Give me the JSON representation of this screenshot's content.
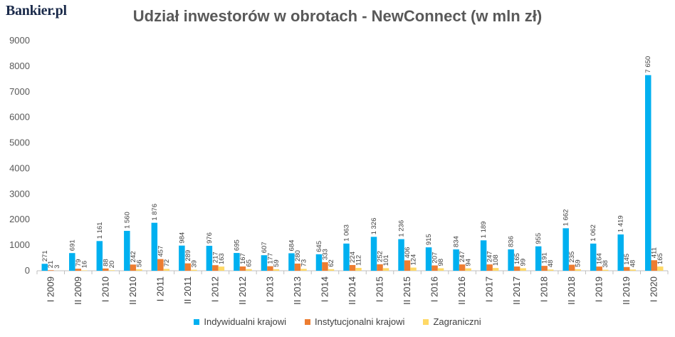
{
  "header": {
    "logo": "Bankier.pl"
  },
  "chart_data": {
    "type": "bar",
    "title": "Udział inwestorów w obrotach - NewConnect (w mln zł)",
    "xlabel": "",
    "ylabel": "",
    "ylim": [
      0,
      9000
    ],
    "yticks": [
      0,
      1000,
      2000,
      3000,
      4000,
      5000,
      6000,
      7000,
      8000,
      9000
    ],
    "grid": false,
    "legend_position": "bottom",
    "categories": [
      "I 2009",
      "II 2009",
      "I 2010",
      "II 2010",
      "I 2011",
      "II 2011",
      "I 2012",
      "II 2012",
      "I 2013",
      "II 2013",
      "I 2014",
      "II 2014",
      "I 2015",
      "II 2015",
      "I 2016",
      "II 2016",
      "I 2017",
      "II 2017",
      "I 2018",
      "II 2018",
      "I 2019",
      "II 2019",
      "I 2020"
    ],
    "series": [
      {
        "name": "Indywidualni krajowi",
        "color": "#00B0F0",
        "values": [
          271,
          691,
          1161,
          1560,
          1876,
          984,
          976,
          695,
          607,
          684,
          645,
          1063,
          1326,
          1236,
          915,
          834,
          1189,
          836,
          955,
          1662,
          1062,
          1419,
          7650
        ],
        "labels": [
          "271",
          "691",
          "1 161",
          "1 560",
          "1 876",
          "984",
          "976",
          "695",
          "607",
          "684",
          "645",
          "1 063",
          "1 326",
          "1 236",
          "915",
          "834",
          "1 189",
          "836",
          "955",
          "1 662",
          "1 062",
          "1 419",
          "7 650"
        ]
      },
      {
        "name": "Instytucjonalni krajowi",
        "color": "#ED7D31",
        "values": [
          21,
          79,
          88,
          242,
          457,
          289,
          217,
          167,
          177,
          280,
          333,
          224,
          252,
          406,
          207,
          247,
          247,
          165,
          191,
          235,
          164,
          145,
          411
        ],
        "labels": [
          "21",
          "79",
          "88",
          "242",
          "457",
          "289",
          "217",
          "167",
          "177",
          "280",
          "333",
          "224",
          "252",
          "406",
          "207",
          "247",
          "247",
          "165",
          "191",
          "235",
          "164",
          "145",
          "411"
        ]
      },
      {
        "name": "Zagraniczni",
        "color": "#FFD966",
        "values": [
          3,
          16,
          20,
          56,
          72,
          39,
          163,
          65,
          59,
          73,
          62,
          112,
          101,
          124,
          98,
          94,
          108,
          99,
          48,
          59,
          38,
          48,
          165
        ],
        "labels": [
          "3",
          "16",
          "20",
          "56",
          "72",
          "39",
          "163",
          "65",
          "59",
          "73",
          "62",
          "112",
          "101",
          "124",
          "98",
          "94",
          "108",
          "99",
          "48",
          "59",
          "38",
          "48",
          "165"
        ]
      }
    ]
  }
}
